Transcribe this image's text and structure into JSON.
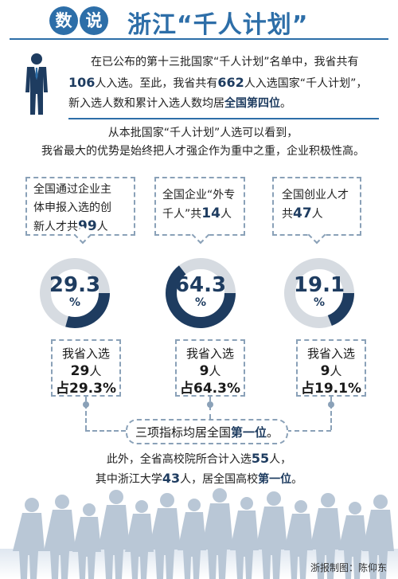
{
  "header": {
    "badge_1": "数",
    "badge_2": "说",
    "title": "浙江“千人计划”"
  },
  "intro": {
    "line1": "在已公布的第十三批国家“千人计划”名单中，我省共有",
    "count_new": "106",
    "line2a": "人入选。至此，我省共有",
    "count_total": "662",
    "line2b": "人入选国家“千人计划”，",
    "line3a": "新入选人数和累计入选人数均居",
    "rank": "全国第四位",
    "line3b": "。"
  },
  "subintro": {
    "line1": "从本批国家“千人计划”人选可以看到，",
    "line2": "我省最大的优势是始终把人才强企作为重中之重，企业积极性高。"
  },
  "categories": [
    {
      "desc_line1": "全国通过企业主",
      "desc_line2": "体申报入选的创",
      "desc_line3a": "新人才共",
      "desc_num": "99",
      "desc_line3b": "人",
      "percent": 29.3,
      "percent_text": "29.3",
      "percent_sign": "%",
      "res_line1": "我省入选",
      "res_num": "29",
      "res_unit": "人",
      "res_share": "占29.3%"
    },
    {
      "desc_line1": "全国企业“外专",
      "desc_line2a": "千人”共",
      "desc_num": "14",
      "desc_line2b": "人",
      "percent": 64.3,
      "percent_text": "64.3",
      "percent_sign": "%",
      "res_line1": "我省入选",
      "res_num": "9",
      "res_unit": "人",
      "res_share": "占64.3%"
    },
    {
      "desc_line1": "全国创业人才",
      "desc_line2a": "共",
      "desc_num": "47",
      "desc_line2b": "人",
      "percent": 19.1,
      "percent_text": "19.1",
      "percent_sign": "%",
      "res_line1": "我省入选",
      "res_num": "9",
      "res_unit": "人",
      "res_share": "占19.1%"
    }
  ],
  "summary": {
    "text_a": "三项指标均居全国",
    "text_b": "第一位",
    "text_c": "。"
  },
  "closing": {
    "line1a": "此外，全省高校院所合计入选",
    "num1": "55",
    "line1b": "人，",
    "line2a": "其中浙江大学",
    "num2": "43",
    "line2b": "人，居全国高校",
    "rank": "第一位",
    "line2c": "。"
  },
  "credit": "浙报制图：陈仰东",
  "colors": {
    "primary": "#2d6ea8",
    "dark_navy": "#1e3c60",
    "ring_bg": "#d6dbe1",
    "dash": "#8aa1b8",
    "silhouette": "#b9c7d6"
  },
  "icons": {
    "person": "businessman-icon",
    "crowd": "crowd-silhouette"
  }
}
